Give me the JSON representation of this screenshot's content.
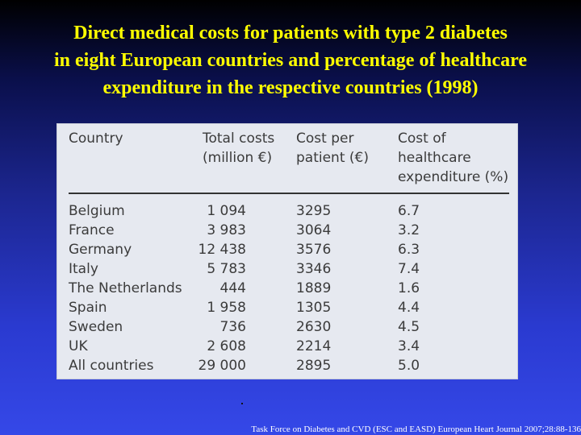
{
  "title": {
    "line1": "Direct medical costs for patients with type 2 diabetes",
    "line2": "in eight European countries and percentage of healthcare",
    "line3": "expenditure in the respective countries (1998)"
  },
  "table": {
    "headers": {
      "country": "Country",
      "total_costs": [
        "Total costs",
        "(million €)"
      ],
      "cost_per_patient": [
        "Cost per",
        "patient (€)"
      ],
      "cost_healthcare": [
        "Cost of",
        "healthcare",
        "expenditure (%)"
      ]
    },
    "rows": [
      {
        "country": "Belgium",
        "total": "1 094",
        "per_patient": "3295",
        "pct": "6.7"
      },
      {
        "country": "France",
        "total": "3 983",
        "per_patient": "3064",
        "pct": "3.2"
      },
      {
        "country": "Germany",
        "total": "12 438",
        "per_patient": "3576",
        "pct": "6.3"
      },
      {
        "country": "Italy",
        "total": "5 783",
        "per_patient": "3346",
        "pct": "7.4"
      },
      {
        "country": "The Netherlands",
        "total": "444",
        "per_patient": "1889",
        "pct": "1.6"
      },
      {
        "country": "Spain",
        "total": "1 958",
        "per_patient": "1305",
        "pct": "4.4"
      },
      {
        "country": "Sweden",
        "total": "736",
        "per_patient": "2630",
        "pct": "4.5"
      },
      {
        "country": "UK",
        "total": "2 608",
        "per_patient": "2214",
        "pct": "3.4"
      },
      {
        "country": "All countries",
        "total": "29 000",
        "per_patient": "2895",
        "pct": "5.0"
      }
    ]
  },
  "source": "Task Force on Diabetes and CVD (ESC and EASD) European Heart Journal 2007;28:88-136"
}
